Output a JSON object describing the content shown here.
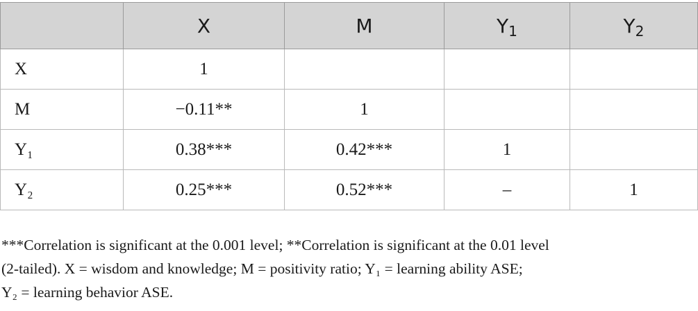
{
  "table": {
    "headers": [
      "",
      "X",
      "M",
      "Y₁",
      "Y₂"
    ],
    "rows": [
      {
        "label": "X",
        "cells": [
          "1",
          "",
          "",
          ""
        ]
      },
      {
        "label": "M",
        "cells": [
          "−0.11**",
          "1",
          "",
          ""
        ]
      },
      {
        "label": "Y₁",
        "cells": [
          "0.38***",
          "0.42***",
          "1",
          ""
        ]
      },
      {
        "label": "Y₂",
        "cells": [
          "0.25***",
          "0.52***",
          "–",
          "1"
        ]
      }
    ]
  },
  "footnote": {
    "lines": [
      "***Correlation is significant at the 0.001 level; **Correlation is significant at the 0.01 level",
      "(2-tailed). X = wisdom and knowledge; M = positivity ratio; Y₁ = learning ability ASE;",
      "Y₂ = learning behavior ASE."
    ]
  }
}
